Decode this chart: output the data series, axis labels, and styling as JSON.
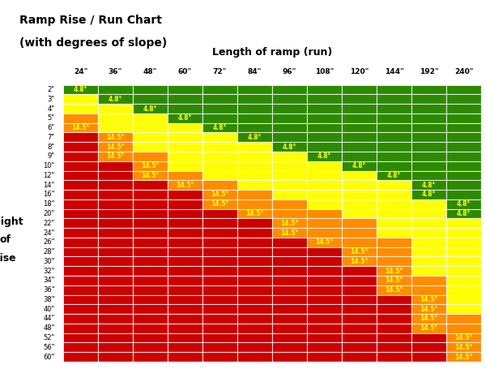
{
  "title_line1": "Ramp Rise / Run Chart",
  "title_line2": "(with degrees of slope)",
  "xlabel": "Length of ramp (run)",
  "ylabel_lines": [
    "Height",
    "of",
    "Rise"
  ],
  "col_labels": [
    "24\"",
    "36\"",
    "48\"",
    "60\"",
    "72\"",
    "84\"",
    "96\"",
    "108\"",
    "120\"",
    "144\"",
    "192\"",
    "240\""
  ],
  "col_runs": [
    24,
    36,
    48,
    60,
    72,
    84,
    96,
    108,
    120,
    144,
    192,
    240
  ],
  "row_labels": [
    "2\"",
    "3\"",
    "4\"",
    "5\"",
    "6\"",
    "7\"",
    "8\"",
    "9\"",
    "10\"",
    "12\"",
    "14\"",
    "16\"",
    "18\"",
    "20\"",
    "22\"",
    "24\"",
    "26\"",
    "28\"",
    "30\"",
    "32\"",
    "34\"",
    "36\"",
    "38\"",
    "40\"",
    "44\"",
    "48\"",
    "52\"",
    "56\"",
    "60\""
  ],
  "row_rises": [
    2,
    3,
    4,
    5,
    6,
    7,
    8,
    9,
    10,
    12,
    14,
    16,
    18,
    20,
    22,
    24,
    26,
    28,
    30,
    32,
    34,
    36,
    38,
    40,
    44,
    48,
    52,
    56,
    60
  ],
  "color_green": "#2d8a00",
  "color_yellow": "#ffff00",
  "color_orange": "#ff8c00",
  "color_red": "#cc0000",
  "text_color": "#ffff00",
  "thresholds": [
    4.8,
    9.6,
    14.5
  ],
  "bg_color": "#ffffff",
  "label_text_color": "#000000"
}
